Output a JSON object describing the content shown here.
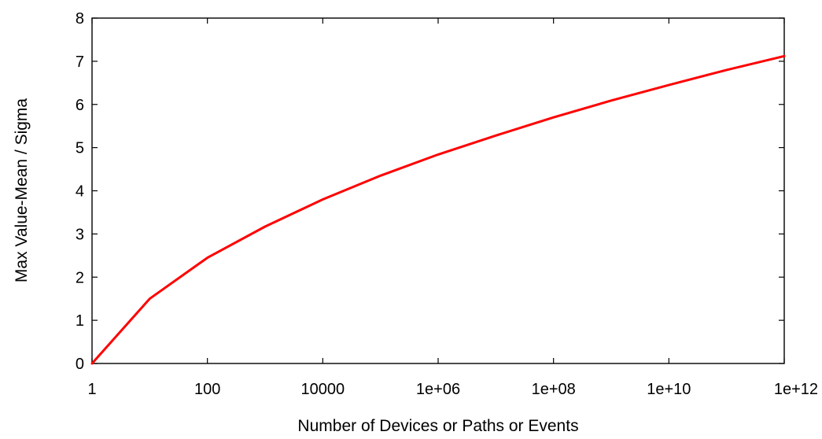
{
  "chart_data": {
    "type": "line",
    "title": "",
    "xlabel": "Number of Devices or Paths or Events",
    "ylabel": "Max Value-Mean / Sigma",
    "x_scale": "log10",
    "xlim": [
      1,
      1000000000000.0
    ],
    "ylim": [
      0,
      8
    ],
    "x_ticks": [
      {
        "value": 1,
        "label": "1"
      },
      {
        "value": 100,
        "label": "100"
      },
      {
        "value": 10000,
        "label": "10000"
      },
      {
        "value": 1000000,
        "label": "1e+06"
      },
      {
        "value": 100000000,
        "label": "1e+08"
      },
      {
        "value": 10000000000,
        "label": "1e+10"
      },
      {
        "value": 1000000000000,
        "label": "1e+12"
      }
    ],
    "y_ticks": [
      {
        "value": 0,
        "label": "0"
      },
      {
        "value": 1,
        "label": "1"
      },
      {
        "value": 2,
        "label": "2"
      },
      {
        "value": 3,
        "label": "3"
      },
      {
        "value": 4,
        "label": "4"
      },
      {
        "value": 5,
        "label": "5"
      },
      {
        "value": 6,
        "label": "6"
      },
      {
        "value": 7,
        "label": "7"
      },
      {
        "value": 8,
        "label": "8"
      }
    ],
    "grid": false,
    "legend": "none",
    "series": [
      {
        "color": "#ff0000",
        "points": [
          {
            "x": 1,
            "y": 0
          },
          {
            "x": 10,
            "y": 1.5
          },
          {
            "x": 100,
            "y": 2.45
          },
          {
            "x": 1000,
            "y": 3.17
          },
          {
            "x": 10000,
            "y": 3.8
          },
          {
            "x": 100000,
            "y": 4.35
          },
          {
            "x": 1000000,
            "y": 4.84
          },
          {
            "x": 10000000,
            "y": 5.28
          },
          {
            "x": 100000000,
            "y": 5.7
          },
          {
            "x": 1000000000,
            "y": 6.09
          },
          {
            "x": 10000000000,
            "y": 6.45
          },
          {
            "x": 100000000000,
            "y": 6.8
          },
          {
            "x": 1000000000000,
            "y": 7.12
          }
        ]
      }
    ]
  }
}
